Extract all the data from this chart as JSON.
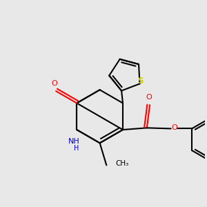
{
  "bg_color": "#e8e8e8",
  "bond_color": "#000000",
  "n_color": "#0000cc",
  "o_color": "#ff0000",
  "s_color": "#cccc00",
  "lw": 1.5,
  "xlim": [
    -2.5,
    3.0
  ],
  "ylim": [
    -2.5,
    2.5
  ]
}
